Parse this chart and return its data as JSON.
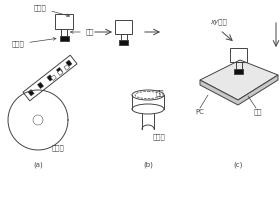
{
  "line_color": "#444444",
  "labels": {
    "piantou": "贴片头",
    "yuanqijian": "元器件",
    "xizui": "吸嘴",
    "songliaoqi": "送料器",
    "guangyuan": "光源",
    "shexiangtou": "摄像头",
    "xy_motion": "xy运动",
    "PC": "PC",
    "hanjing": "焊盘",
    "a_label": "(a)",
    "b_label": "(b)",
    "c_label": "(c)"
  },
  "figsize": [
    2.8,
    2.0
  ],
  "dpi": 100
}
